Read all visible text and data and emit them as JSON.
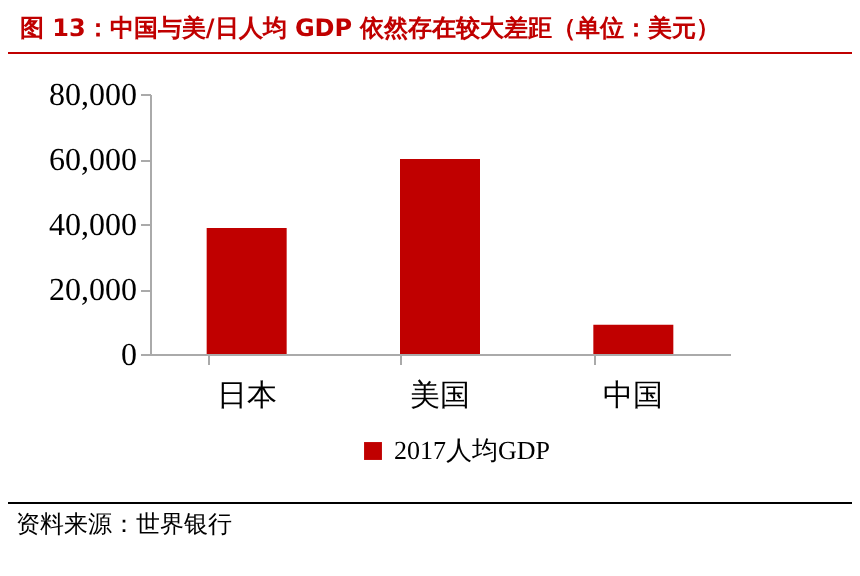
{
  "chart_data": {
    "type": "bar",
    "title": "图 13：中国与美/日人均 GDP 依然存在较大差距（单位：美元）",
    "categories": [
      "日本",
      "美国",
      "中国"
    ],
    "series": [
      {
        "name": "2017人均GDP",
        "color": "#c00000",
        "values": [
          38800,
          60000,
          9000
        ]
      }
    ],
    "ylim": [
      0,
      80000
    ],
    "yticks": [
      0,
      {
        "value": 20000,
        "label": "20,000"
      },
      {
        "value": 40000,
        "label": "40,000"
      },
      {
        "value": 60000,
        "label": "60,000"
      },
      {
        "value": 80000,
        "label": "80,000"
      }
    ],
    "grid": false,
    "legend": "bottom",
    "annotations": [
      "资料来源：世界银行"
    ]
  }
}
